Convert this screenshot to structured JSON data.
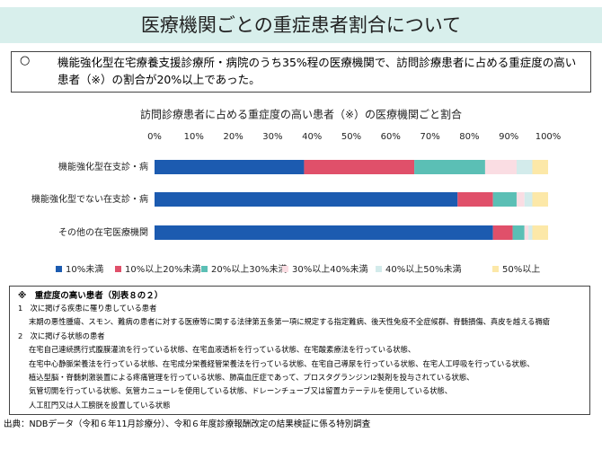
{
  "header": {
    "title": "医療機関ごとの重症患者割合について"
  },
  "summary": {
    "bullet": "○",
    "text": "機能強化型在宅療養支援診療所・病院のうち35%程の医療機関で、訪問診療患者に占める重症度の高い患者（※）の割合が20%以上であった。"
  },
  "chart_data": {
    "type": "stacked-bar-horizontal",
    "title": "訪問診療患者に占める重症度の高い患者（※）の医療機関ごと割合",
    "categories": [
      "機能強化型在支診・病",
      "機能強化型でない在支診・病",
      "その他の在宅医療機関"
    ],
    "series": [
      {
        "name": "10%未満",
        "color": "#1c5bb0",
        "values": [
          38,
          77,
          86
        ]
      },
      {
        "name": "10%以上20%未満",
        "color": "#e0506a",
        "values": [
          28,
          9,
          5
        ]
      },
      {
        "name": "20%以上30%未満",
        "color": "#5bbfb5",
        "values": [
          18,
          6,
          3
        ]
      },
      {
        "name": "30%以上40%未満",
        "color": "#fadde3",
        "values": [
          8,
          2,
          1
        ]
      },
      {
        "name": "40%以上50%未満",
        "color": "#d3ebeb",
        "values": [
          4,
          2,
          1
        ]
      },
      {
        "name": "50%以上",
        "color": "#fce8a8",
        "values": [
          4,
          4,
          4
        ]
      }
    ],
    "xlim": [
      0,
      100
    ],
    "xticks": [
      {
        "value": 0,
        "label": "0%"
      },
      {
        "value": 10,
        "label": "10%"
      },
      {
        "value": 20,
        "label": "20%"
      },
      {
        "value": 30,
        "label": "30%"
      },
      {
        "value": 40,
        "label": "40%"
      },
      {
        "value": 50,
        "label": "50%"
      },
      {
        "value": 60,
        "label": "60%"
      },
      {
        "value": 70,
        "label": "70%"
      },
      {
        "value": 80,
        "label": "80%"
      },
      {
        "value": 90,
        "label": "90%"
      },
      {
        "value": 100,
        "label": "100%"
      }
    ],
    "legend": "bottom"
  },
  "notes": {
    "title": "※　重症度の高い患者（別表８の２）",
    "lines": [
      "1　次に掲げる疾患に罹り患している患者",
      "末期の悪性腫瘍、スモン、難病の患者に対する医療等に関する法律第五条第一項に規定する指定難病、後天性免疫不全症候群、脊髄損傷、真皮を越える褥瘡",
      "2　次に掲げる状態の患者",
      "在宅自己連続携行式腹膜灌流を行っている状態、在宅血液透析を行っている状態、在宅酸素療法を行っている状態、",
      "在宅中心静脈栄養法を行っている状態、在宅成分栄養経管栄養法を行っている状態、在宅自己導尿を行っている状態、在宅人工呼吸を行っている状態、",
      "植込型脳・脊髄刺激装置による疼痛管理を行っている状態、肺高血圧症であって、プロスタグランジンI2製剤を投与されている状態、",
      "気管切開を行っている状態、気管カニューレを使用している状態、ドレーンチューブ又は留置カテーテルを使用している状態、",
      "人工肛門又は人工膀胱を設置している状態"
    ]
  },
  "source": "出典：NDBデータ（令和６年11月診療分）、令和６年度診療報酬改定の結果検証に係る特別調査"
}
